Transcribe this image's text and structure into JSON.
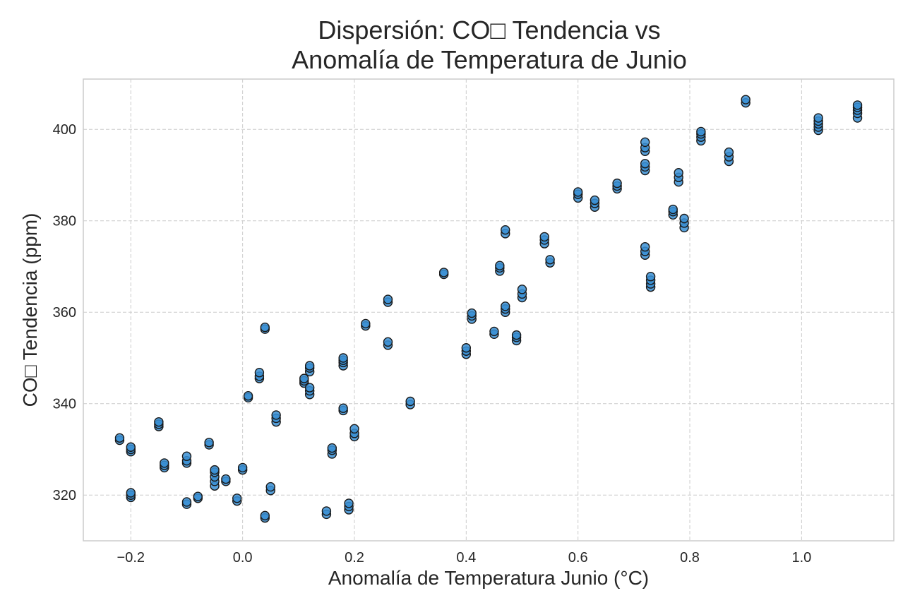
{
  "chart_data": {
    "type": "scatter",
    "title": [
      "Dispersión: CO□ Tendencia vs",
      "Anomalía de Temperatura de Junio"
    ],
    "xlabel": "Anomalía de Temperatura Junio (°C)",
    "ylabel": "CO□ Tendencia (ppm)",
    "xlim": [
      -0.285,
      1.165
    ],
    "ylim": [
      310,
      411
    ],
    "xticks": [
      -0.2,
      0.0,
      0.2,
      0.4,
      0.6,
      0.8,
      1.0
    ],
    "xtick_labels": [
      "−0.2",
      "0.0",
      "0.2",
      "0.4",
      "0.6",
      "0.8",
      "1.0"
    ],
    "yticks": [
      320,
      340,
      360,
      380,
      400
    ],
    "ytick_labels": [
      "320",
      "340",
      "360",
      "380",
      "400"
    ],
    "grid": true,
    "marker_color": "#3a8fd4",
    "marker_edge_color": "#1a1a1a",
    "series": [
      {
        "x": [
          -0.22,
          -0.22,
          -0.2,
          -0.2,
          -0.2,
          -0.2,
          -0.2,
          -0.2,
          -0.15,
          -0.15,
          -0.15,
          -0.14,
          -0.14,
          -0.14,
          -0.1,
          -0.1,
          -0.1,
          -0.1,
          -0.1,
          -0.08,
          -0.08,
          -0.06,
          -0.06,
          -0.05,
          -0.05,
          -0.05,
          -0.05,
          -0.05,
          -0.03,
          -0.03,
          -0.01,
          -0.01,
          0.0,
          0.0,
          0.01,
          0.01,
          0.03,
          0.03,
          0.03,
          0.04,
          0.04,
          0.04,
          0.04,
          0.05,
          0.05,
          0.06,
          0.06,
          0.06,
          0.11,
          0.11,
          0.11,
          0.12,
          0.12,
          0.12,
          0.12,
          0.12,
          0.12,
          0.15,
          0.15,
          0.16,
          0.16,
          0.16,
          0.18,
          0.18,
          0.18,
          0.18,
          0.18,
          0.18,
          0.19,
          0.19,
          0.19,
          0.2,
          0.2,
          0.2,
          0.22,
          0.22,
          0.26,
          0.26,
          0.26,
          0.26,
          0.3,
          0.3,
          0.36,
          0.36,
          0.4,
          0.4,
          0.4,
          0.41,
          0.41,
          0.41,
          0.45,
          0.45,
          0.46,
          0.46,
          0.46,
          0.47,
          0.47,
          0.47,
          0.47,
          0.47,
          0.49,
          0.49,
          0.49,
          0.5,
          0.5,
          0.5,
          0.54,
          0.54,
          0.54,
          0.55,
          0.55,
          0.6,
          0.6,
          0.6,
          0.63,
          0.63,
          0.63,
          0.67,
          0.67,
          0.67,
          0.72,
          0.72,
          0.72,
          0.72,
          0.72,
          0.72,
          0.72,
          0.72,
          0.72,
          0.73,
          0.73,
          0.73,
          0.73,
          0.77,
          0.77,
          0.77,
          0.78,
          0.78,
          0.78,
          0.79,
          0.79,
          0.79,
          0.82,
          0.82,
          0.82,
          0.82,
          0.87,
          0.87,
          0.87,
          0.9,
          0.9,
          1.03,
          1.03,
          1.03,
          1.03,
          1.03,
          1.1,
          1.1,
          1.1,
          1.1,
          1.1
        ],
        "y": [
          332,
          332.5,
          319.5,
          320,
          320.5,
          329.5,
          330,
          330.5,
          335,
          335.5,
          336,
          326,
          326.5,
          327,
          318,
          318.5,
          327,
          327.5,
          328.5,
          319.3,
          319.7,
          331,
          331.5,
          322,
          323,
          324,
          325,
          325.5,
          323,
          323.5,
          318.7,
          319.3,
          325.5,
          326,
          341.3,
          341.7,
          345.5,
          346,
          346.8,
          315,
          315.5,
          356.3,
          356.7,
          321,
          321.8,
          336,
          336.8,
          337.5,
          344.5,
          345,
          345.5,
          342,
          342.8,
          343.5,
          347,
          347.8,
          348.3,
          315.8,
          316.5,
          329,
          329.8,
          330.3,
          338.5,
          339,
          348.3,
          349,
          349.5,
          350,
          316.8,
          317.5,
          318.2,
          332.8,
          333.5,
          334.5,
          357,
          357.5,
          352.8,
          353.5,
          362.2,
          362.8,
          339.8,
          340.5,
          368.3,
          368.7,
          350.8,
          351.5,
          352.2,
          358.5,
          359.2,
          359.8,
          355.2,
          355.8,
          369,
          369.7,
          370.2,
          360,
          360.7,
          361.3,
          377.2,
          378,
          353.8,
          354.5,
          355,
          363.2,
          364,
          365,
          375,
          375.8,
          376.5,
          370.8,
          371.5,
          385,
          385.8,
          386.3,
          383,
          383.8,
          384.5,
          387,
          387.6,
          388.2,
          391,
          391.8,
          392.5,
          395.2,
          396,
          397.2,
          372.5,
          373.3,
          374.3,
          365.5,
          366.2,
          367,
          367.8,
          381.3,
          382,
          382.5,
          388.5,
          389.5,
          390.5,
          378.5,
          379.5,
          380.5,
          397.5,
          398.3,
          399,
          399.5,
          393,
          394,
          395,
          405.8,
          406.5,
          399.8,
          400.5,
          401.2,
          401.8,
          402.5,
          402.5,
          403.5,
          404.2,
          404.8,
          405.3
        ]
      }
    ]
  }
}
